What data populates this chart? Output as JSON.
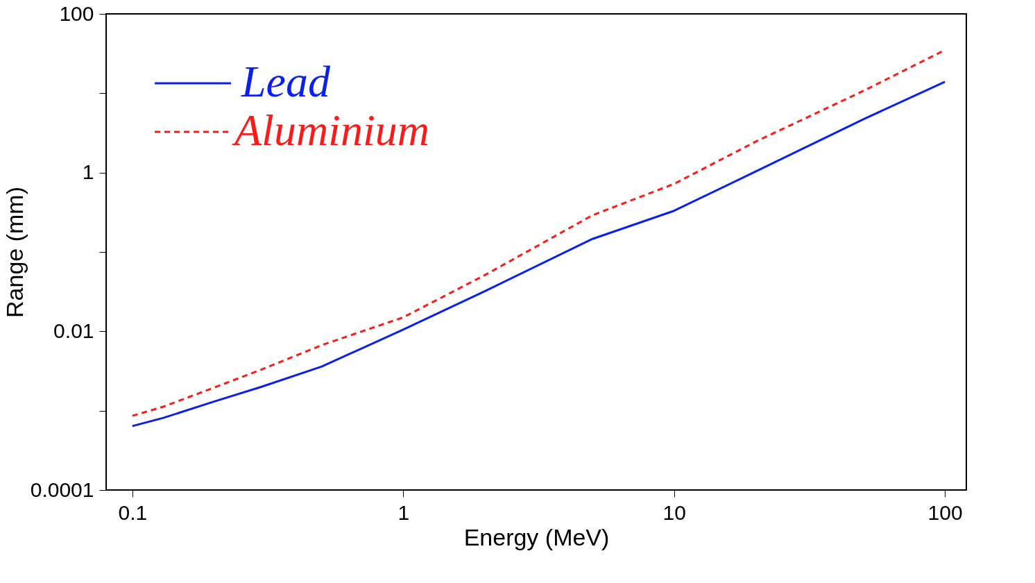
{
  "chart_data": {
    "type": "line",
    "xlabel": "Energy  (MeV)",
    "ylabel": "Range (mm)",
    "log": "xy",
    "legend": "top left",
    "xlim": [
      0.08,
      120
    ],
    "xticks": [
      0.1,
      1,
      10,
      100
    ],
    "ylim": [
      0.0001,
      100
    ],
    "yticks": [
      0.0001,
      {
        "value": 0.001,
        "label": null
      },
      0.01,
      {
        "value": 0.1,
        "label": null
      },
      1,
      {
        "value": 10,
        "label": null
      },
      100
    ],
    "x": [
      0.1,
      0.13,
      0.2,
      0.3,
      0.5,
      1,
      2,
      5,
      10,
      20,
      50,
      100
    ],
    "series": [
      {
        "name": "Lead",
        "color": "#0a1ff0",
        "line_style": "solid",
        "values": [
          0.00064,
          0.00081,
          0.0013,
          0.002,
          0.0036,
          0.0105,
          0.032,
          0.146,
          0.33,
          1.03,
          4.7,
          13.9
        ]
      },
      {
        "name": "Aluminium",
        "color": "#ff1a1a",
        "line_style": "dashed",
        "values": [
          0.00086,
          0.00112,
          0.00195,
          0.0033,
          0.0067,
          0.015,
          0.051,
          0.29,
          0.72,
          2.45,
          10.7,
          35
        ]
      }
    ]
  }
}
